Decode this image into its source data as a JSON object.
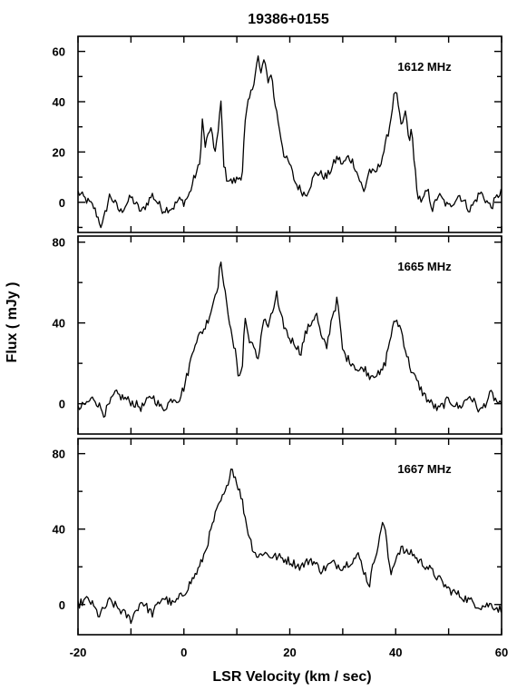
{
  "title": "19386+0155",
  "xlabel": "LSR  Velocity  (km / sec)",
  "ylabel": "Flux ( mJy )",
  "colors": {
    "line": "#000000",
    "frame": "#000000",
    "background": "#ffffff"
  },
  "chart_data": [
    {
      "type": "line",
      "label": "1612 MHz",
      "xlim": [
        -20,
        60
      ],
      "ylim": [
        -12,
        66
      ],
      "yticks": [
        0,
        20,
        40,
        60
      ],
      "xticks": [
        -20,
        0,
        20,
        40,
        60
      ],
      "grid": false,
      "series": [
        {
          "x": [
            -20,
            -17,
            -15.5,
            -14,
            -12,
            -10,
            -8,
            -6,
            -4,
            -2,
            -1,
            0,
            1,
            2,
            3,
            3.5,
            4,
            5,
            5.8,
            6.5,
            7,
            7.5,
            8,
            9,
            10,
            11,
            11.5,
            12,
            13,
            13.5,
            14,
            14.5,
            15,
            16,
            16.5,
            17,
            18,
            19,
            20,
            21,
            22,
            23,
            25,
            27,
            29,
            30,
            31,
            32,
            33,
            34,
            35,
            36,
            37,
            38,
            39,
            39.5,
            40,
            41,
            42,
            42.5,
            43,
            44,
            44.5,
            45,
            46,
            47,
            48,
            50,
            52,
            54,
            56,
            58,
            60
          ],
          "values": [
            4,
            -2,
            -10,
            3,
            -4,
            2,
            -4,
            3,
            -3,
            -2,
            1,
            0,
            3,
            10,
            15,
            33,
            22,
            30,
            20,
            28,
            40,
            16,
            10,
            8,
            9,
            11,
            30,
            38,
            46,
            52,
            58,
            50,
            57,
            48,
            52,
            42,
            30,
            18,
            15,
            8,
            5,
            3,
            12,
            10,
            18,
            15,
            18,
            16,
            10,
            4,
            13,
            11,
            15,
            22,
            32,
            40,
            45,
            30,
            36,
            22,
            30,
            4,
            2,
            0,
            5,
            -3,
            3,
            -2,
            3,
            -3,
            4,
            -2,
            5
          ]
        }
      ]
    },
    {
      "type": "line",
      "label": "1665 MHz",
      "xlim": [
        -20,
        60
      ],
      "ylim": [
        -15,
        83
      ],
      "yticks": [
        0,
        40,
        80
      ],
      "xticks": [
        -20,
        0,
        20,
        40,
        60
      ],
      "grid": false,
      "series": [
        {
          "x": [
            -20,
            -17,
            -15,
            -13,
            -10,
            -8,
            -6,
            -4,
            -2,
            -1,
            0,
            0.5,
            1,
            2,
            3,
            4,
            5,
            6,
            6.5,
            7,
            7.5,
            8,
            9,
            10,
            10.3,
            11,
            11.5,
            12,
            13,
            14,
            15,
            16,
            17,
            17.5,
            18,
            19,
            20,
            21,
            22,
            23,
            24,
            25,
            26,
            27,
            28,
            28.5,
            29,
            29.5,
            30,
            31,
            32,
            33,
            34,
            35,
            36,
            37,
            38,
            39,
            40,
            41,
            42,
            43,
            44,
            45,
            46,
            48,
            50,
            52,
            54,
            56,
            58,
            60
          ],
          "values": [
            -3,
            3,
            -5,
            5,
            1,
            -2,
            4,
            -3,
            3,
            2,
            8,
            13,
            18,
            30,
            34,
            38,
            45,
            55,
            60,
            72,
            57,
            53,
            33,
            22,
            14,
            16,
            44,
            35,
            28,
            22,
            42,
            38,
            48,
            55,
            45,
            38,
            32,
            30,
            25,
            35,
            40,
            45,
            32,
            28,
            44,
            47,
            52,
            38,
            26,
            22,
            20,
            16,
            18,
            14,
            15,
            14,
            20,
            33,
            42,
            37,
            25,
            16,
            11,
            6,
            2,
            -3,
            2,
            -2,
            4,
            -4,
            5,
            -2
          ]
        }
      ]
    },
    {
      "type": "line",
      "label": "1667 MHz",
      "xlim": [
        -20,
        60
      ],
      "ylim": [
        -16,
        88
      ],
      "yticks": [
        0,
        40,
        80
      ],
      "xticks": [
        -20,
        0,
        20,
        40,
        60
      ],
      "grid": false,
      "series": [
        {
          "x": [
            -20,
            -18,
            -16,
            -14,
            -12,
            -10,
            -8,
            -6,
            -4,
            -2,
            0,
            2,
            3,
            4,
            5,
            6,
            7,
            8,
            8.5,
            9,
            10,
            11,
            12,
            13,
            14,
            15,
            16,
            18,
            20,
            22,
            24,
            26,
            28,
            30,
            32,
            33,
            34,
            35,
            36,
            37,
            37.5,
            38,
            39,
            40,
            41,
            42,
            43,
            44,
            46,
            48,
            50,
            52,
            54,
            56,
            58,
            60
          ],
          "values": [
            0,
            3,
            -6,
            2,
            -3,
            -8,
            2,
            -5,
            4,
            0,
            6,
            15,
            20,
            28,
            38,
            48,
            55,
            60,
            68,
            73,
            65,
            55,
            40,
            30,
            25,
            28,
            26,
            25,
            23,
            20,
            24,
            18,
            22,
            20,
            24,
            26,
            18,
            10,
            25,
            35,
            45,
            40,
            15,
            25,
            30,
            27,
            28,
            24,
            20,
            14,
            8,
            5,
            2,
            -1,
            0,
            -3
          ]
        }
      ]
    }
  ]
}
